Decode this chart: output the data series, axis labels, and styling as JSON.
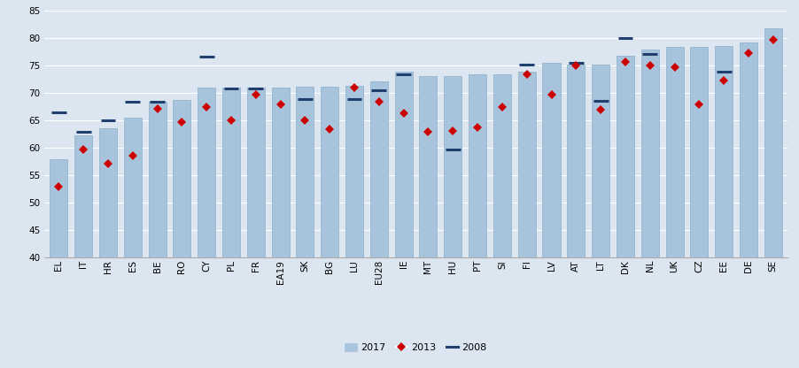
{
  "categories": [
    "EL",
    "IT",
    "HR",
    "ES",
    "BE",
    "RO",
    "CY",
    "PL",
    "FR",
    "EA19",
    "SK",
    "BG",
    "LU",
    "EU28",
    "IE",
    "MT",
    "HU",
    "PT",
    "SI",
    "FI",
    "LV",
    "AT",
    "LT",
    "DK",
    "NL",
    "UK",
    "CZ",
    "EE",
    "DE",
    "SE"
  ],
  "val_2017": [
    58.0,
    62.3,
    63.6,
    65.5,
    68.5,
    68.8,
    71.0,
    71.0,
    71.0,
    71.0,
    71.2,
    71.2,
    71.4,
    72.2,
    73.9,
    73.1,
    73.2,
    73.4,
    73.5,
    74.0,
    75.5,
    75.3,
    75.3,
    76.8,
    78.0,
    78.4,
    78.5,
    78.7,
    79.2,
    81.8
  ],
  "val_2013": [
    52.9,
    59.8,
    57.2,
    58.6,
    67.2,
    64.8,
    67.5,
    65.1,
    69.7,
    68.0,
    65.0,
    63.5,
    71.1,
    68.5,
    66.4,
    62.9,
    63.2,
    63.7,
    67.4,
    73.4,
    69.7,
    75.1,
    67.0,
    75.7,
    75.0,
    74.8,
    68.0,
    72.4,
    77.3,
    79.8
  ],
  "val_2008": [
    66.5,
    63.0,
    65.1,
    68.5,
    68.5,
    null,
    76.7,
    70.9,
    70.9,
    null,
    69.0,
    null,
    69.0,
    70.5,
    73.5,
    null,
    59.7,
    null,
    null,
    75.3,
    null,
    75.5,
    68.6,
    80.0,
    77.2,
    null,
    null,
    74.0,
    null,
    null
  ],
  "bar_color": "#a8c4dc",
  "bar_edge_color": "#8baec8",
  "line_2008_color": "#1f3f6e",
  "marker_2013_color": "#cc0000",
  "ylim": [
    40,
    85
  ],
  "yticks": [
    40,
    45,
    50,
    55,
    60,
    65,
    70,
    75,
    80,
    85
  ],
  "fig_background_color": "#dce6f1",
  "plot_background_color": "#dce6f1",
  "grid_color": "#ffffff"
}
